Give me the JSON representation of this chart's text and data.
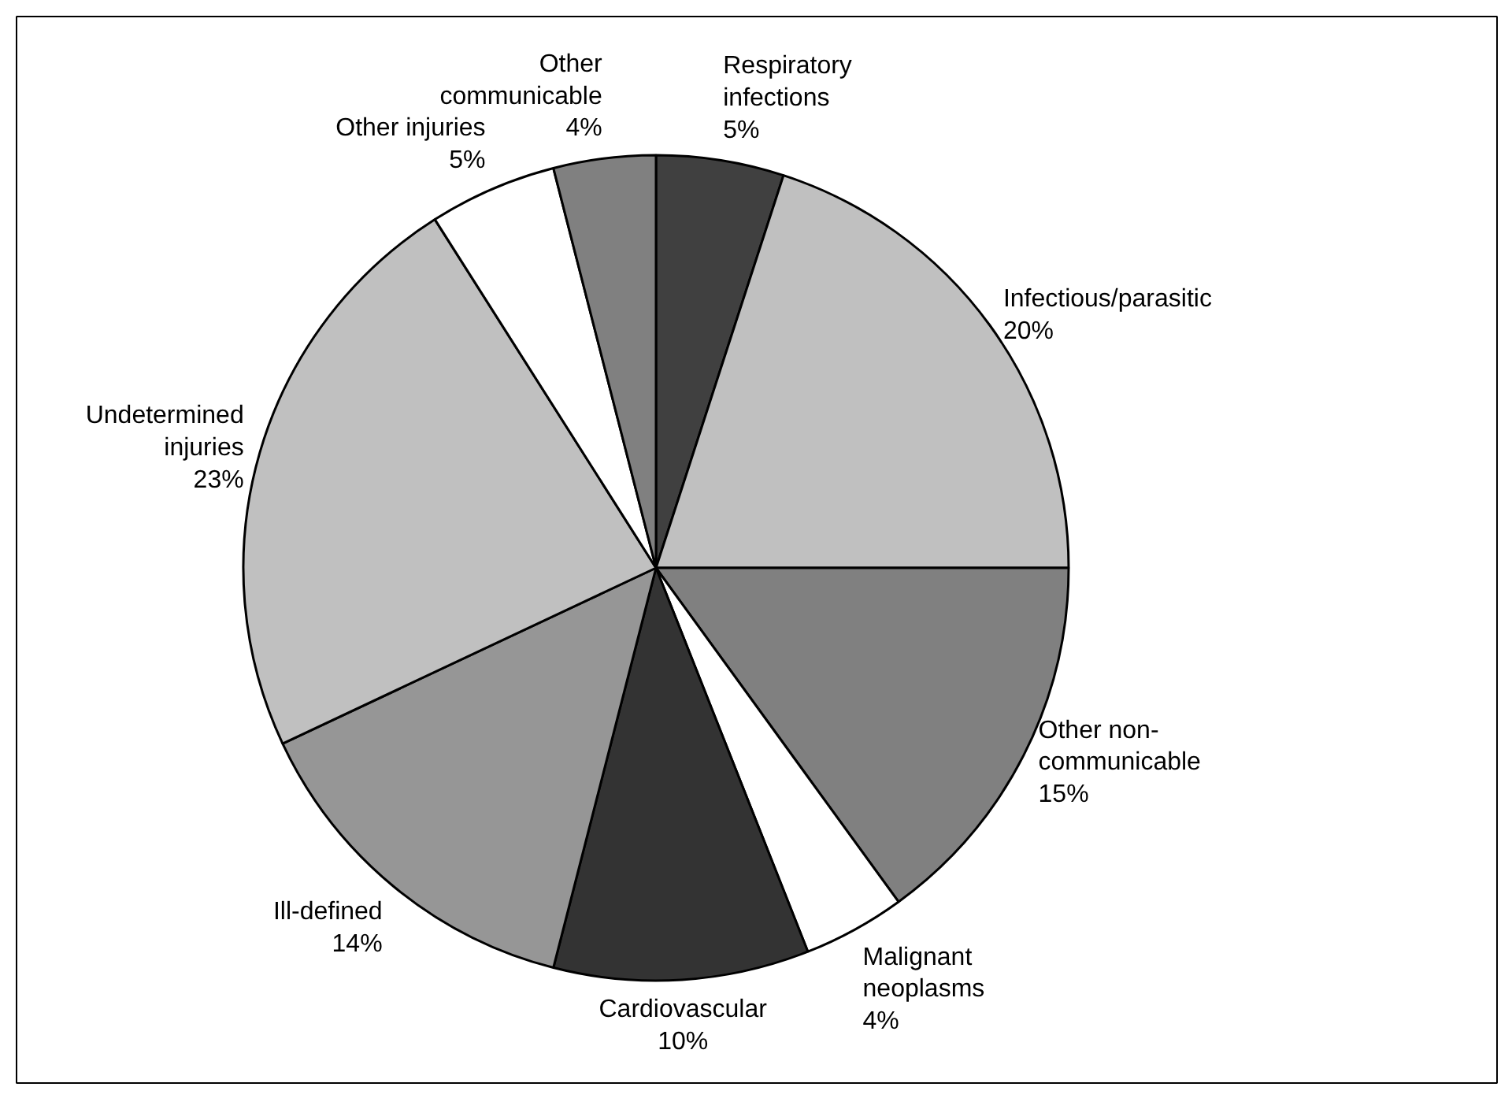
{
  "chart_data": {
    "type": "pie",
    "categories": [
      "Respiratory\ninfections",
      "Infectious/parasitic",
      "Other non-\ncommunicable",
      "Malignant\nneoplasms",
      "Cardiovascular",
      "Ill-defined",
      "Undetermined\ninjuries",
      "Other injuries",
      "Other\ncommunicable"
    ],
    "values": [
      5,
      20,
      15,
      4,
      10,
      14,
      23,
      5,
      4
    ],
    "value_labels": [
      "5%",
      "20%",
      "15%",
      "4%",
      "10%",
      "14%",
      "23%",
      "5%",
      "4%"
    ],
    "colors": [
      "#404040",
      "#c0c0c0",
      "#808080",
      "#ffffff",
      "#333333",
      "#969696",
      "#c0c0c0",
      "#ffffff",
      "#808080"
    ]
  }
}
